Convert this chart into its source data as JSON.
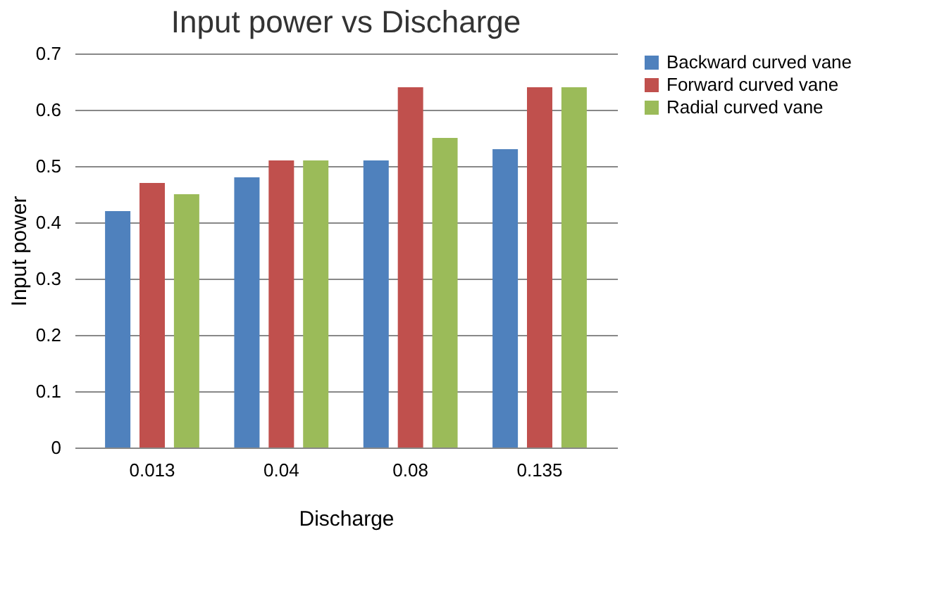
{
  "chart_data": {
    "type": "bar",
    "title": "Input power vs Discharge",
    "xlabel": "Discharge",
    "ylabel": "Input power",
    "categories": [
      "0.013",
      "0.04",
      "0.08",
      "0.135"
    ],
    "series": [
      {
        "name": "Backward curved vane",
        "color": "#4f81bd",
        "values": [
          0.42,
          0.48,
          0.51,
          0.53
        ]
      },
      {
        "name": "Forward curved vane",
        "color": "#c0504d",
        "values": [
          0.47,
          0.51,
          0.64,
          0.64
        ]
      },
      {
        "name": "Radial curved vane",
        "color": "#9bbb59",
        "values": [
          0.45,
          0.51,
          0.55,
          0.64
        ]
      }
    ],
    "ylim": [
      0,
      0.7
    ],
    "yticks": [
      0,
      0.1,
      0.2,
      0.3,
      0.4,
      0.5,
      0.6,
      0.7
    ],
    "grid": "y",
    "legend": "right"
  }
}
